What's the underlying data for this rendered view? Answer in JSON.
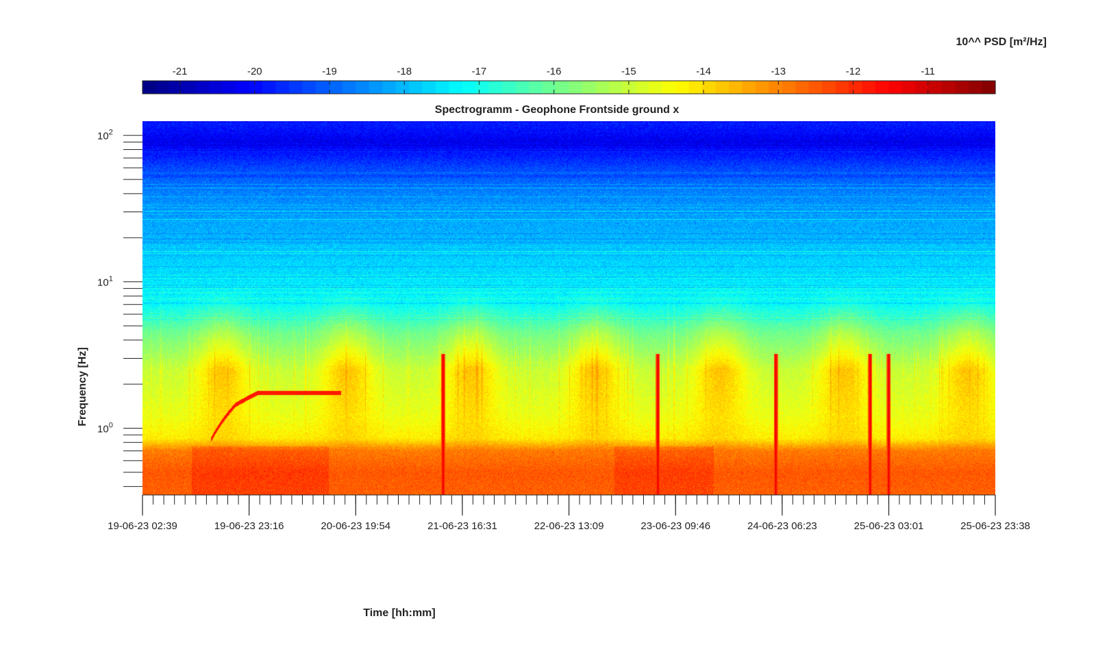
{
  "chart_data": {
    "type": "heatmap",
    "title": "Spectrogramm - Geophone Frontside ground x",
    "xlabel": "Time [hh:mm]",
    "ylabel": "Frequency [Hz]",
    "colorbar": {
      "label": "10^^ PSD [m²/Hz]",
      "range": [
        -21.5,
        -10.1
      ],
      "ticks": [
        "-21",
        "-20",
        "-19",
        "-18",
        "-17",
        "-16",
        "-15",
        "-14",
        "-13",
        "-12",
        "-11"
      ],
      "tick_values": [
        -21,
        -20,
        -19,
        -18,
        -17,
        -16,
        -15,
        -14,
        -13,
        -12,
        -11
      ],
      "colormap": "jet",
      "placement": "top"
    },
    "x_axis": {
      "range_days": [
        0,
        6.871
      ],
      "tick_days": [
        0,
        0.859,
        1.718,
        2.577,
        3.436,
        4.295,
        5.154,
        6.013,
        6.871
      ],
      "tick_labels": [
        "19-06-23 02:39",
        "19-06-23 23:16",
        "20-06-23 19:54",
        "21-06-23 16:31",
        "22-06-23 13:09",
        "23-06-23 09:46",
        "24-06-23 06:23",
        "25-06-23 03:01",
        "25-06-23 23:38"
      ]
    },
    "y_axis": {
      "scale": "log",
      "range": [
        0.35,
        125
      ],
      "tick_values": [
        1,
        10,
        100
      ],
      "tick_base": "10",
      "tick_exponents": [
        "0",
        "1",
        "2"
      ]
    },
    "spectral_profile": [
      {
        "frequency": 0.35,
        "psd_log10": -12.6
      },
      {
        "frequency": 0.5,
        "psd_log10": -12.5
      },
      {
        "frequency": 0.7,
        "psd_log10": -12.9
      },
      {
        "frequency": 0.85,
        "psd_log10": -14.2
      },
      {
        "frequency": 1.2,
        "psd_log10": -14.6
      },
      {
        "frequency": 2.5,
        "psd_log10": -15.0
      },
      {
        "frequency": 4.5,
        "psd_log10": -16.0
      },
      {
        "frequency": 7,
        "psd_log10": -17.2
      },
      {
        "frequency": 15,
        "psd_log10": -17.8
      },
      {
        "frequency": 40,
        "psd_log10": -18.6
      },
      {
        "frequency": 60,
        "psd_log10": -19.3
      },
      {
        "frequency": 90,
        "psd_log10": -20.3
      },
      {
        "frequency": 125,
        "psd_log10": -19.7
      }
    ],
    "transient_events_days": [
      2.42,
      4.15,
      5.1,
      5.86,
      6.01
    ],
    "chirp_feature": {
      "time_days": [
        0.55,
        0.75,
        0.93,
        1.6
      ],
      "frequency": [
        0.83,
        1.45,
        1.75,
        1.75
      ],
      "psd_log10": -11.8
    }
  }
}
